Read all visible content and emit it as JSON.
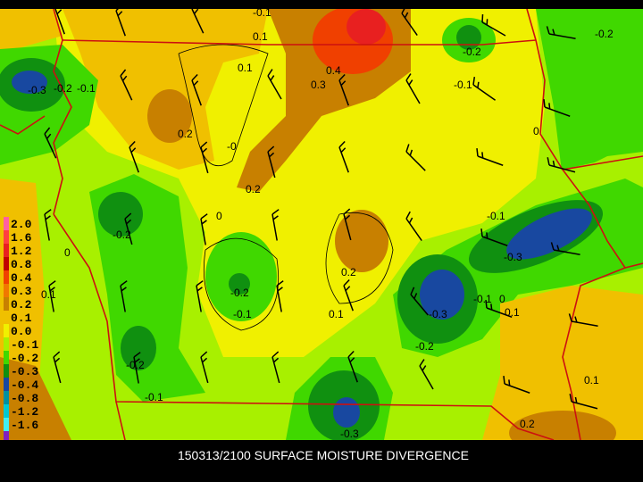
{
  "title": "150313/2100 SURFACE MOISTURE DIVERGENCE",
  "legend": {
    "labels": [
      "2.0",
      "1.6",
      "1.2",
      "0.8",
      "0.4",
      "0.3",
      "0.2",
      "0.1",
      "0.0",
      "-0.1",
      "-0.2",
      "-0.3",
      "-0.4",
      "-0.8",
      "-1.2",
      "-1.6"
    ],
    "colors": [
      "#ff60a0",
      "#ff4040",
      "#e82020",
      "#c00000",
      "#f04000",
      "#f07800",
      "#c88000",
      "#f0c000",
      "#f0f000",
      "#a8f000",
      "#40d800",
      "#109010",
      "#1848a0",
      "#0090a0",
      "#00c8d0",
      "#40f0f0",
      "#8020c0"
    ]
  },
  "contour_labels": [
    "-0.1",
    "0.1",
    "0.1",
    "0.4",
    "0.3",
    "-0.3",
    "-0.2",
    "-0.1",
    "-0.2",
    "-0.2",
    "-0.1",
    "0",
    "0.2",
    "-0",
    "0.2",
    "-0.1",
    "0",
    "-0.2",
    "0",
    "-0.3",
    "0.2",
    "0.1",
    "-0.2",
    "-0.1",
    "0.1",
    "-0.3",
    "-0.1",
    "0",
    "0.1",
    "-0.2",
    "-0.2",
    "-0.1",
    "0.1",
    "-0.3",
    "0.2"
  ]
}
